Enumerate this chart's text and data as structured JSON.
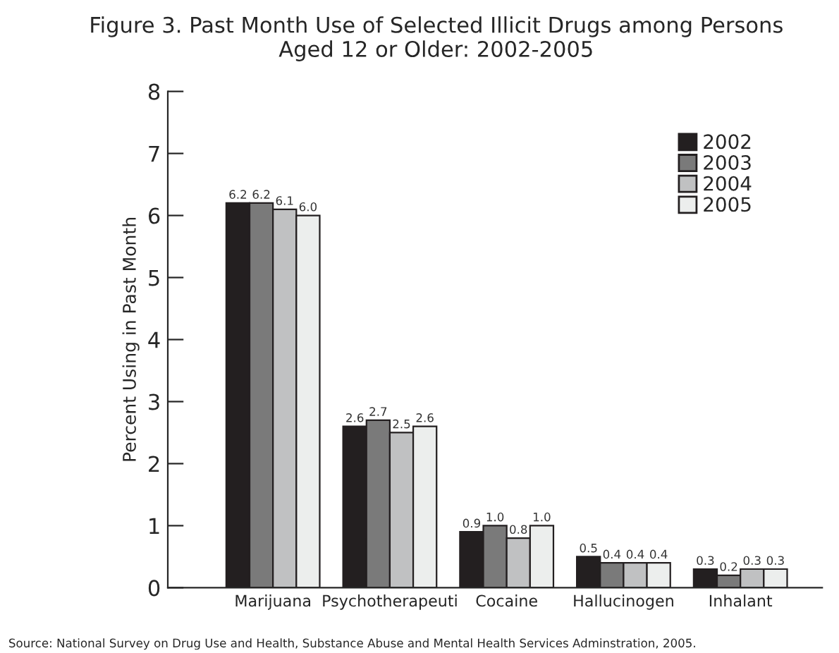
{
  "chart_data": {
    "type": "bar",
    "title": "Figure 3. Past Month Use of Selected Illicit Drugs among Persons\nAged 12 or Older: 2002-2005",
    "ylabel": "Percent Using in Past Month",
    "categories": [
      "Marijuana",
      "Psychotherapeuti",
      "Cocaine",
      "Hallucinogen",
      "Inhalant"
    ],
    "series": [
      {
        "name": "2002",
        "color": "#231f20",
        "values": [
          6.2,
          2.6,
          0.9,
          0.5,
          0.3
        ],
        "value_labels": [
          "6.2",
          "2.6",
          "0.9",
          "0.5",
          "0.3"
        ]
      },
      {
        "name": "2003",
        "color": "#7a7a7a",
        "values": [
          6.2,
          2.7,
          1,
          0.4,
          0.2
        ],
        "value_labels": [
          "6.2",
          "2.7",
          "1.0",
          "0.4",
          "0.2"
        ]
      },
      {
        "name": "2004",
        "color": "#c0c1c2",
        "values": [
          6.1,
          2.5,
          0.8,
          0.4,
          0.3
        ],
        "value_labels": [
          "6.1",
          "2.5",
          "0.8",
          "0.4",
          "0.3"
        ]
      },
      {
        "name": "2005",
        "color": "#eceeed",
        "values": [
          6,
          2.6,
          1,
          0.4,
          0.3
        ],
        "value_labels": [
          "6.0",
          "2.6",
          "1.0",
          "0.4",
          "0.3"
        ]
      }
    ],
    "ylim": [
      0,
      8
    ],
    "yticks": [
      0,
      1,
      2,
      3,
      4,
      5,
      6,
      7,
      8
    ],
    "grid": false,
    "legend": "top right",
    "annotations": [
      "Source: National Survey on Drug Use and Health, Substance Abuse and Mental Health Services Adminstration, 2005."
    ]
  }
}
